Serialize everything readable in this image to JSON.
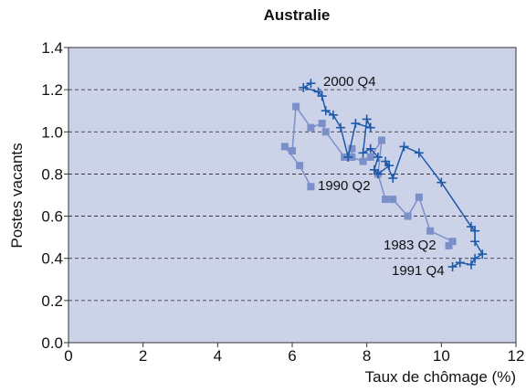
{
  "chart_data": {
    "type": "line",
    "title": "Australie",
    "xlabel": "Taux de chômage (%)",
    "ylabel": "Postes vacants",
    "xlim": [
      0,
      12
    ],
    "xticks": [
      0,
      2,
      4,
      6,
      8,
      10,
      12
    ],
    "ylim": [
      0,
      1.4
    ],
    "yticks": [
      {
        "value": 0,
        "label": "0.0"
      },
      {
        "value": 0.2,
        "label": "0.2"
      },
      {
        "value": 0.4,
        "label": "0.4"
      },
      {
        "value": 0.6,
        "label": "0.6"
      },
      {
        "value": 0.8,
        "label": "0.8"
      },
      {
        "value": 1,
        "label": "1.0"
      },
      {
        "value": 1.2,
        "label": "1.2"
      },
      {
        "value": 1.4,
        "label": "1.4"
      }
    ],
    "grid": true,
    "series": [
      {
        "color": "#7b8fc9",
        "marker": "square",
        "x": [
          10.2,
          10.3,
          9.7,
          9.4,
          9.1,
          8.7,
          8.5,
          8.3,
          8.4,
          8.1,
          7.9,
          7.6,
          7.6,
          7.4,
          6.9,
          6.8,
          6.5,
          6.1,
          6.0,
          5.8,
          6.2,
          6.5
        ],
        "values": [
          0.46,
          0.48,
          0.53,
          0.69,
          0.6,
          0.68,
          0.68,
          0.8,
          0.96,
          0.88,
          0.86,
          0.88,
          0.92,
          0.88,
          1.0,
          1.04,
          1.02,
          1.12,
          0.91,
          0.93,
          0.84,
          0.74
        ]
      },
      {
        "color": "#1f5aa8",
        "marker": "plus",
        "x": [
          10.3,
          10.5,
          10.8,
          10.9,
          11.1,
          10.9,
          10.9,
          10.8,
          10.0,
          9.4,
          9.0,
          8.7,
          8.5,
          8.6,
          8.3,
          8.2,
          8.3,
          8.1,
          7.9,
          8.0,
          8.1,
          7.7,
          7.5,
          7.3,
          7.1,
          6.9,
          6.8,
          6.7,
          6.3,
          6.5
        ],
        "values": [
          0.36,
          0.38,
          0.37,
          0.4,
          0.42,
          0.48,
          0.53,
          0.55,
          0.76,
          0.9,
          0.93,
          0.78,
          0.86,
          0.84,
          0.8,
          0.82,
          0.88,
          0.92,
          0.9,
          1.06,
          1.02,
          1.04,
          0.88,
          1.02,
          1.08,
          1.1,
          1.17,
          1.19,
          1.21,
          1.23
        ]
      }
    ],
    "annotations": [
      "2000 Q4",
      "1990 Q2",
      "1983 Q2",
      "1991 Q4"
    ]
  }
}
